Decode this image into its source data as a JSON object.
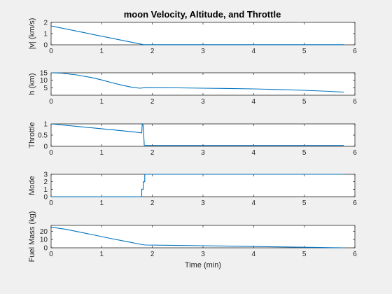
{
  "figure": {
    "title": "moon Velocity, Altitude, and Throttle",
    "background": "#f0f0f0",
    "line_color": "#0072bd"
  },
  "chart_data": [
    {
      "type": "line",
      "ylabel": "|v| (km/s)",
      "xlabel": "",
      "xlim": [
        0,
        6
      ],
      "ylim": [
        0,
        2
      ],
      "xticks": [
        0,
        1,
        2,
        3,
        4,
        5,
        6
      ],
      "yticks": [
        0,
        1,
        2
      ],
      "ytick_labels": [
        "0",
        "1",
        "2"
      ],
      "series": [
        {
          "x": [
            0,
            1.82,
            1.9,
            5.78
          ],
          "y": [
            1.68,
            0.02,
            0.01,
            0.01
          ]
        }
      ]
    },
    {
      "type": "line",
      "ylabel": "h (km)",
      "xlabel": "",
      "xlim": [
        0,
        6
      ],
      "ylim": [
        0,
        15
      ],
      "xticks": [
        0,
        1,
        2,
        3,
        4,
        5,
        6
      ],
      "yticks": [
        5,
        10,
        15
      ],
      "ytick_labels": [
        "5",
        "10",
        "15"
      ],
      "series": [
        {
          "x": [
            0,
            0.2,
            0.5,
            0.8,
            1.0,
            1.2,
            1.4,
            1.6,
            1.75,
            1.85,
            2.0,
            2.5,
            3.0,
            3.5,
            4.0,
            4.5,
            5.0,
            5.5,
            5.78
          ],
          "y": [
            15,
            14.8,
            13.6,
            11.8,
            10.2,
            8.4,
            6.7,
            5.3,
            4.7,
            5.0,
            5.0,
            4.9,
            4.7,
            4.5,
            4.2,
            3.8,
            3.3,
            2.6,
            2.0
          ]
        }
      ]
    },
    {
      "type": "line",
      "ylabel": "Throttle",
      "xlabel": "",
      "xlim": [
        0,
        6
      ],
      "ylim": [
        0,
        1
      ],
      "xticks": [
        0,
        1,
        2,
        3,
        4,
        5,
        6
      ],
      "yticks": [
        0,
        0.5,
        1
      ],
      "ytick_labels": [
        "0",
        "0.5",
        "1"
      ],
      "series": [
        {
          "x": [
            0,
            1.6,
            1.79,
            1.8,
            1.82,
            1.84,
            1.86,
            2.0,
            3.0,
            4.0,
            5.0,
            5.78
          ],
          "y": [
            1.0,
            0.65,
            0.6,
            1.0,
            0.95,
            0.05,
            0.04,
            0.04,
            0.04,
            0.04,
            0.04,
            0.04
          ]
        }
      ]
    },
    {
      "type": "line",
      "ylabel": "Mode",
      "xlabel": "",
      "xlim": [
        0,
        6
      ],
      "ylim": [
        0,
        3
      ],
      "xticks": [
        0,
        1,
        2,
        3,
        4,
        5,
        6
      ],
      "yticks": [
        0,
        1,
        2,
        3
      ],
      "ytick_labels": [
        "0",
        "1",
        "2",
        "3"
      ],
      "series": [
        {
          "x": [
            0,
            1.79,
            1.79,
            1.82,
            1.82,
            1.85,
            1.85,
            5.78
          ],
          "y": [
            0,
            0,
            1,
            1,
            2,
            2,
            3,
            3
          ]
        }
      ]
    },
    {
      "type": "line",
      "ylabel": "Fuel Mass (kg)",
      "xlabel": "Time (min)",
      "xlim": [
        0,
        6
      ],
      "ylim": [
        0,
        27
      ],
      "xticks": [
        0,
        1,
        2,
        3,
        4,
        5,
        6
      ],
      "yticks": [
        0,
        10,
        20
      ],
      "ytick_labels": [
        "0",
        "10",
        "20"
      ],
      "series": [
        {
          "x": [
            0,
            0.3,
            0.6,
            0.9,
            1.2,
            1.5,
            1.8,
            1.86,
            2.5,
            3.0,
            3.5,
            4.0,
            4.5,
            5.0,
            5.5,
            5.78
          ],
          "y": [
            25,
            22.2,
            18.5,
            14.8,
            11.0,
            7.4,
            3.8,
            3.4,
            2.9,
            2.5,
            2.0,
            1.6,
            1.1,
            0.7,
            0.2,
            0.0
          ]
        }
      ]
    }
  ]
}
